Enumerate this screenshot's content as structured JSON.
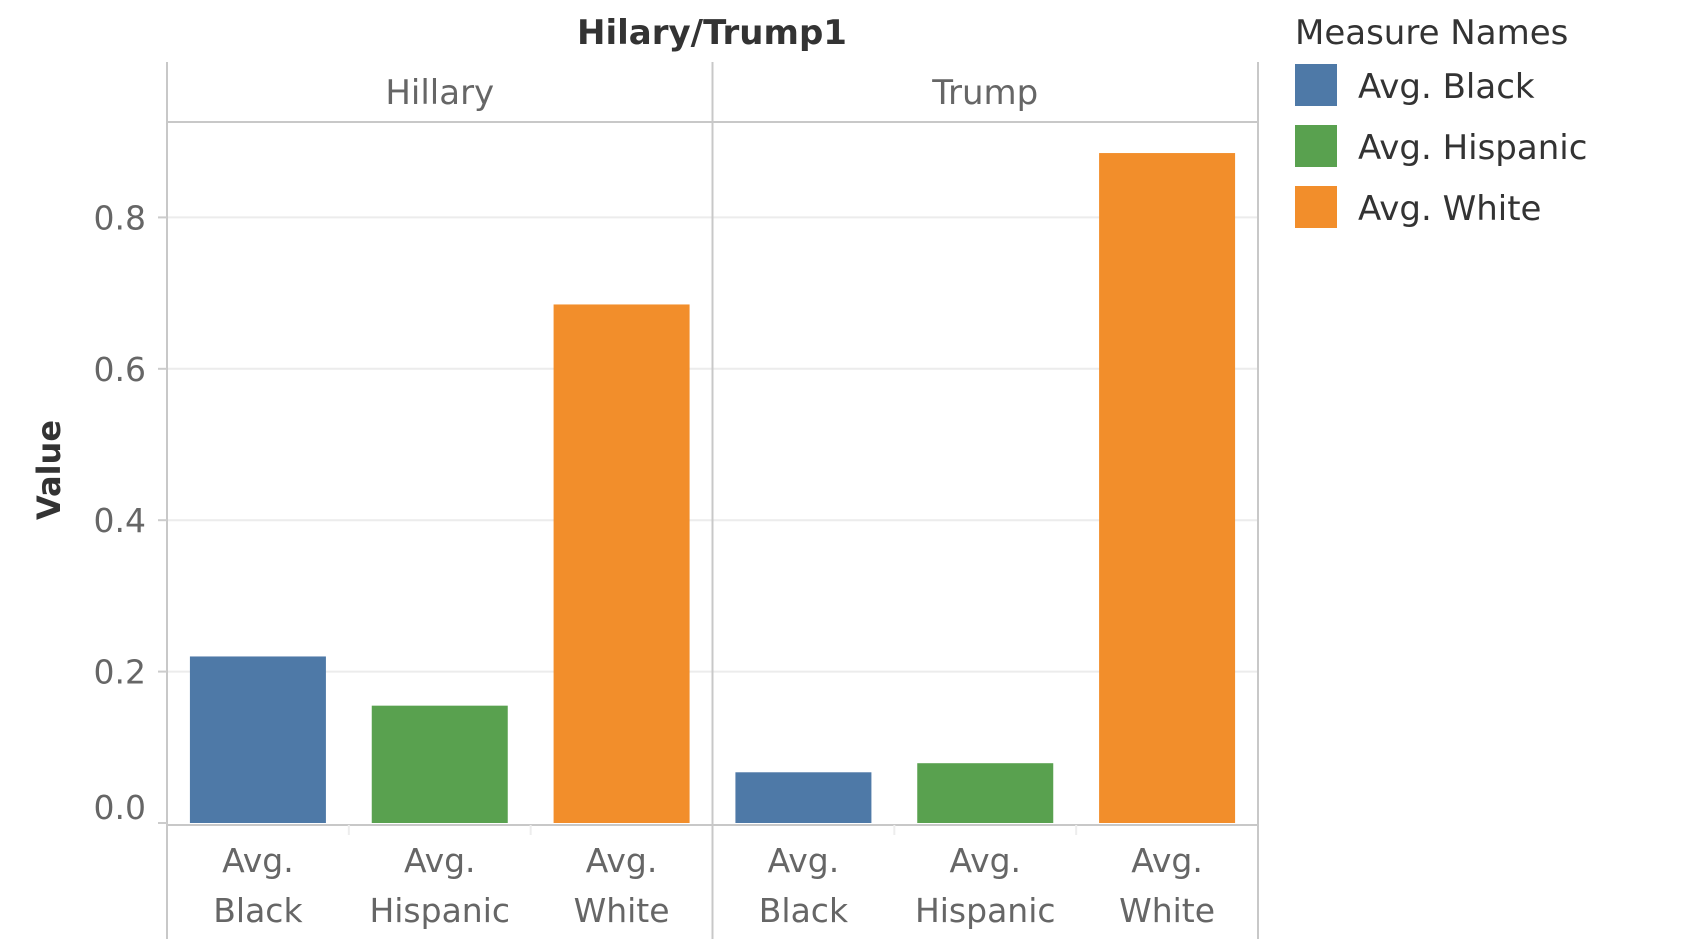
{
  "chart_data": {
    "type": "bar",
    "title": "Hilary/Trump1",
    "ylabel": "Value",
    "xlabel": "",
    "ylim": [
      0,
      0.93
    ],
    "yticks": [
      "0.0",
      "0.2",
      "0.4",
      "0.6",
      "0.8"
    ],
    "grid": true,
    "panes": [
      {
        "name": "Hillary",
        "values": [
          0.22,
          0.155,
          0.685
        ]
      },
      {
        "name": "Trump",
        "values": [
          0.067,
          0.079,
          0.885
        ]
      }
    ],
    "categories": [
      [
        "Avg.",
        "Black"
      ],
      [
        "Avg.",
        "Hispanic"
      ],
      [
        "Avg.",
        "White"
      ]
    ],
    "legend": {
      "title": "Measure Names",
      "position": "top-right",
      "items": [
        {
          "label": "Avg. Black",
          "color": "#4e79a7"
        },
        {
          "label": "Avg. Hispanic",
          "color": "#59a14f"
        },
        {
          "label": "Avg. White",
          "color": "#f28e2b"
        }
      ]
    }
  }
}
